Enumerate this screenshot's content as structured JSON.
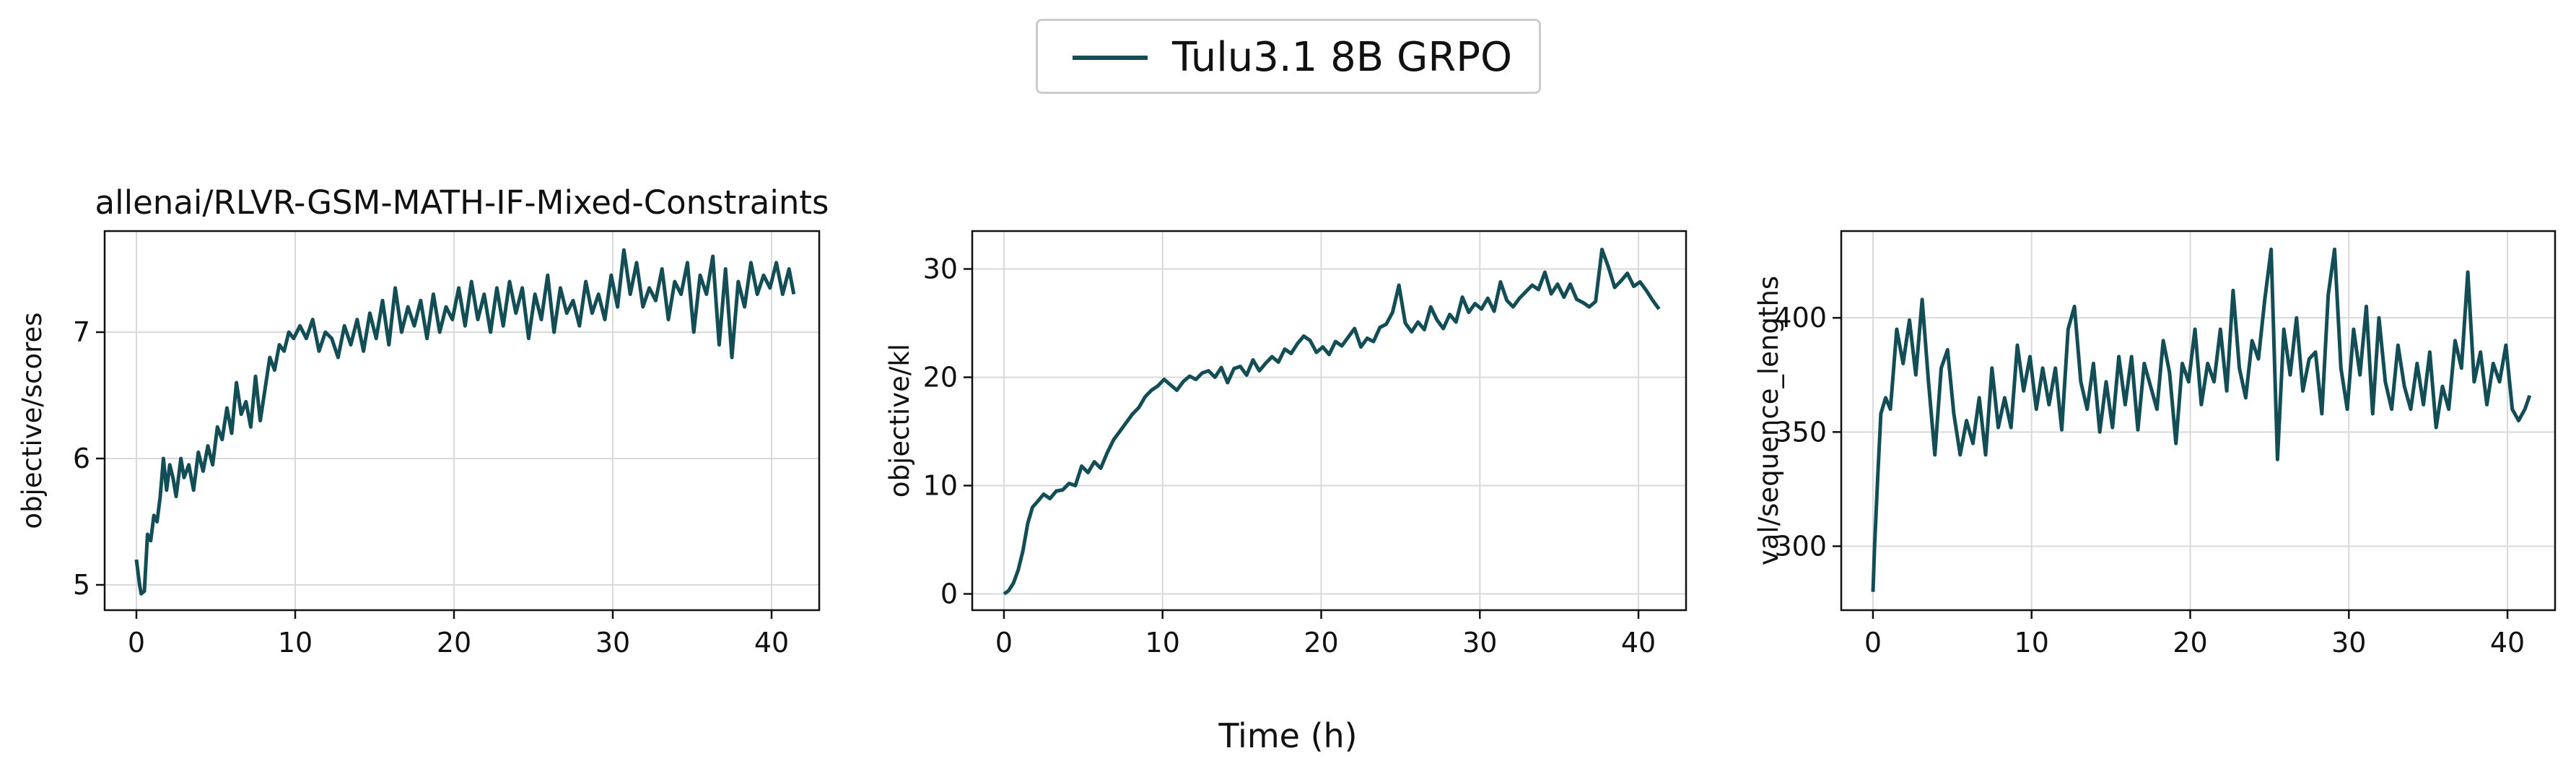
{
  "legend": {
    "label": "Tulu3.1 8B GRPO",
    "color": "#134e56"
  },
  "figure_xlabel": "Time (h)",
  "chart_data": [
    {
      "type": "line",
      "title": "allenai/RLVR-GSM-MATH-IF-Mixed-Constraints",
      "xlabel": "",
      "ylabel": "objective/scores",
      "xlim": [
        -2,
        43
      ],
      "ylim": [
        4.8,
        7.8
      ],
      "xticks": [
        0,
        10,
        20,
        30,
        40
      ],
      "yticks": [
        5,
        6,
        7
      ],
      "grid": true,
      "series": [
        {
          "name": "Tulu3.1 8B GRPO",
          "x": [
            0,
            0.2,
            0.3,
            0.5,
            0.7,
            0.9,
            1.1,
            1.3,
            1.5,
            1.7,
            1.9,
            2.1,
            2.3,
            2.5,
            2.8,
            3,
            3.3,
            3.6,
            3.9,
            4.2,
            4.5,
            4.8,
            5.1,
            5.4,
            5.7,
            6,
            6.3,
            6.6,
            6.9,
            7.2,
            7.5,
            7.8,
            8.1,
            8.4,
            8.7,
            9,
            9.3,
            9.6,
            9.9,
            10.3,
            10.7,
            11.1,
            11.5,
            11.9,
            12.3,
            12.7,
            13.1,
            13.5,
            13.9,
            14.3,
            14.7,
            15.1,
            15.5,
            15.9,
            16.3,
            16.7,
            17.1,
            17.5,
            17.9,
            18.3,
            18.7,
            19.1,
            19.5,
            19.9,
            20.3,
            20.7,
            21.1,
            21.5,
            21.9,
            22.3,
            22.7,
            23.1,
            23.5,
            23.9,
            24.3,
            24.7,
            25.1,
            25.5,
            25.9,
            26.3,
            26.7,
            27.1,
            27.5,
            27.9,
            28.3,
            28.7,
            29.1,
            29.5,
            29.9,
            30.3,
            30.7,
            31.1,
            31.5,
            31.9,
            32.3,
            32.7,
            33.1,
            33.5,
            33.9,
            34.3,
            34.7,
            35.1,
            35.5,
            35.9,
            36.3,
            36.7,
            37.1,
            37.5,
            37.9,
            38.3,
            38.7,
            39.1,
            39.5,
            39.9,
            40.3,
            40.7,
            41.1,
            41.4
          ],
          "values": [
            5.2,
            5.0,
            4.93,
            4.95,
            5.4,
            5.35,
            5.55,
            5.5,
            5.7,
            6.0,
            5.75,
            5.95,
            5.85,
            5.7,
            6.0,
            5.85,
            5.95,
            5.75,
            6.05,
            5.9,
            6.1,
            5.95,
            6.25,
            6.15,
            6.4,
            6.2,
            6.6,
            6.35,
            6.45,
            6.25,
            6.65,
            6.3,
            6.55,
            6.8,
            6.7,
            6.9,
            6.85,
            7.0,
            6.95,
            7.05,
            6.95,
            7.1,
            6.85,
            7.0,
            6.95,
            6.8,
            7.05,
            6.9,
            7.1,
            6.85,
            7.15,
            6.95,
            7.25,
            6.9,
            7.35,
            7.0,
            7.2,
            7.05,
            7.25,
            6.95,
            7.3,
            7.0,
            7.2,
            7.1,
            7.35,
            7.05,
            7.4,
            7.1,
            7.3,
            7.0,
            7.35,
            7.05,
            7.4,
            7.15,
            7.35,
            6.95,
            7.3,
            7.1,
            7.45,
            7.0,
            7.35,
            7.15,
            7.25,
            7.05,
            7.4,
            7.15,
            7.3,
            7.1,
            7.45,
            7.2,
            7.65,
            7.3,
            7.55,
            7.2,
            7.35,
            7.25,
            7.5,
            7.1,
            7.4,
            7.3,
            7.55,
            7.0,
            7.45,
            7.3,
            7.6,
            6.9,
            7.5,
            6.8,
            7.4,
            7.2,
            7.55,
            7.3,
            7.45,
            7.35,
            7.55,
            7.3,
            7.5,
            7.3
          ]
        }
      ]
    },
    {
      "type": "line",
      "title": "",
      "xlabel": "",
      "ylabel": "objective/kl",
      "xlim": [
        -2,
        43
      ],
      "ylim": [
        -1.5,
        33.5
      ],
      "xticks": [
        0,
        10,
        20,
        30,
        40
      ],
      "yticks": [
        0,
        10,
        20,
        30
      ],
      "grid": true,
      "series": [
        {
          "name": "Tulu3.1 8B GRPO",
          "x": [
            0,
            0.3,
            0.6,
            0.9,
            1.2,
            1.5,
            1.8,
            2.1,
            2.5,
            2.9,
            3.3,
            3.7,
            4.1,
            4.5,
            4.9,
            5.3,
            5.7,
            6.1,
            6.5,
            6.9,
            7.3,
            7.7,
            8.1,
            8.5,
            8.9,
            9.3,
            9.7,
            10.1,
            10.5,
            10.9,
            11.3,
            11.7,
            12.1,
            12.5,
            12.9,
            13.3,
            13.7,
            14.1,
            14.5,
            14.9,
            15.3,
            15.7,
            16.1,
            16.5,
            16.9,
            17.3,
            17.7,
            18.1,
            18.5,
            18.9,
            19.3,
            19.7,
            20.1,
            20.5,
            20.9,
            21.3,
            21.7,
            22.1,
            22.5,
            22.9,
            23.3,
            23.7,
            24.1,
            24.5,
            24.9,
            25.3,
            25.7,
            26.1,
            26.5,
            26.9,
            27.3,
            27.7,
            28.1,
            28.5,
            28.9,
            29.3,
            29.7,
            30.1,
            30.5,
            30.9,
            31.3,
            31.7,
            32.1,
            32.5,
            32.9,
            33.3,
            33.7,
            34.1,
            34.5,
            34.9,
            35.3,
            35.7,
            36.1,
            36.5,
            36.9,
            37.3,
            37.7,
            38.1,
            38.5,
            38.9,
            39.3,
            39.7,
            40.1,
            40.5,
            40.9,
            41.3
          ],
          "values": [
            0,
            0.3,
            1,
            2.2,
            4,
            6.5,
            8,
            8.5,
            9.2,
            8.8,
            9.5,
            9.6,
            10.2,
            10.0,
            11.8,
            11.2,
            12.2,
            11.6,
            13.0,
            14.2,
            15.0,
            15.8,
            16.6,
            17.2,
            18.2,
            18.8,
            19.2,
            19.8,
            19.3,
            18.8,
            19.6,
            20.1,
            19.8,
            20.4,
            20.6,
            20.0,
            20.9,
            19.5,
            20.8,
            21.0,
            20.2,
            21.6,
            20.6,
            21.3,
            21.9,
            21.4,
            22.6,
            22.2,
            23.1,
            23.8,
            23.4,
            22.3,
            22.8,
            22.1,
            23.3,
            22.9,
            23.7,
            24.5,
            22.8,
            23.6,
            23.3,
            24.6,
            24.9,
            26.0,
            28.5,
            25.0,
            24.2,
            25.1,
            24.4,
            26.5,
            25.3,
            24.5,
            25.8,
            25.1,
            27.4,
            26.0,
            26.8,
            26.3,
            27.3,
            26.1,
            28.8,
            27.1,
            26.5,
            27.3,
            27.9,
            28.5,
            28.1,
            29.7,
            27.7,
            28.6,
            27.4,
            28.6,
            27.2,
            26.9,
            26.5,
            27.0,
            31.8,
            30.2,
            28.3,
            28.9,
            29.6,
            28.4,
            28.8,
            28.0,
            27.1,
            26.3
          ]
        }
      ]
    },
    {
      "type": "line",
      "title": "",
      "xlabel": "",
      "ylabel": "val/sequence_lengths",
      "xlim": [
        -2,
        43
      ],
      "ylim": [
        272,
        438
      ],
      "xticks": [
        0,
        10,
        20,
        30,
        40
      ],
      "yticks": [
        300,
        350,
        400
      ],
      "grid": true,
      "series": [
        {
          "name": "Tulu3.1 8B GRPO",
          "x": [
            0,
            0.1,
            0.3,
            0.5,
            0.8,
            1.1,
            1.5,
            1.9,
            2.3,
            2.7,
            3.1,
            3.5,
            3.9,
            4.3,
            4.7,
            5.1,
            5.5,
            5.9,
            6.3,
            6.7,
            7.1,
            7.5,
            7.9,
            8.3,
            8.7,
            9.1,
            9.5,
            9.9,
            10.3,
            10.7,
            11.1,
            11.5,
            11.9,
            12.3,
            12.7,
            13.1,
            13.5,
            13.9,
            14.3,
            14.7,
            15.1,
            15.5,
            15.9,
            16.3,
            16.7,
            17.1,
            17.5,
            17.9,
            18.3,
            18.7,
            19.1,
            19.5,
            19.9,
            20.3,
            20.7,
            21.1,
            21.5,
            21.9,
            22.3,
            22.7,
            23.1,
            23.5,
            23.9,
            24.3,
            24.7,
            25.1,
            25.5,
            25.9,
            26.3,
            26.7,
            27.1,
            27.5,
            27.9,
            28.3,
            28.7,
            29.1,
            29.5,
            29.9,
            30.3,
            30.7,
            31.1,
            31.5,
            31.9,
            32.3,
            32.7,
            33.1,
            33.5,
            33.9,
            34.3,
            34.7,
            35.1,
            35.5,
            35.9,
            36.3,
            36.7,
            37.1,
            37.5,
            37.9,
            38.3,
            38.7,
            39.1,
            39.5,
            39.9,
            40.3,
            40.7,
            41.1,
            41.4
          ],
          "values": [
            280,
            300,
            330,
            358,
            365,
            360,
            395,
            380,
            399,
            375,
            408,
            372,
            340,
            378,
            386,
            358,
            340,
            355,
            345,
            365,
            340,
            378,
            352,
            365,
            352,
            388,
            368,
            383,
            360,
            378,
            362,
            378,
            351,
            395,
            405,
            372,
            360,
            380,
            350,
            372,
            352,
            383,
            362,
            383,
            351,
            380,
            370,
            360,
            390,
            376,
            345,
            380,
            372,
            395,
            362,
            380,
            372,
            395,
            368,
            412,
            378,
            365,
            390,
            382,
            408,
            430,
            338,
            395,
            375,
            400,
            368,
            382,
            385,
            358,
            410,
            430,
            378,
            360,
            395,
            375,
            405,
            358,
            400,
            372,
            360,
            388,
            370,
            360,
            380,
            362,
            385,
            352,
            370,
            360,
            390,
            378,
            420,
            372,
            385,
            362,
            380,
            372,
            388,
            360,
            355,
            360,
            366
          ]
        }
      ]
    }
  ]
}
